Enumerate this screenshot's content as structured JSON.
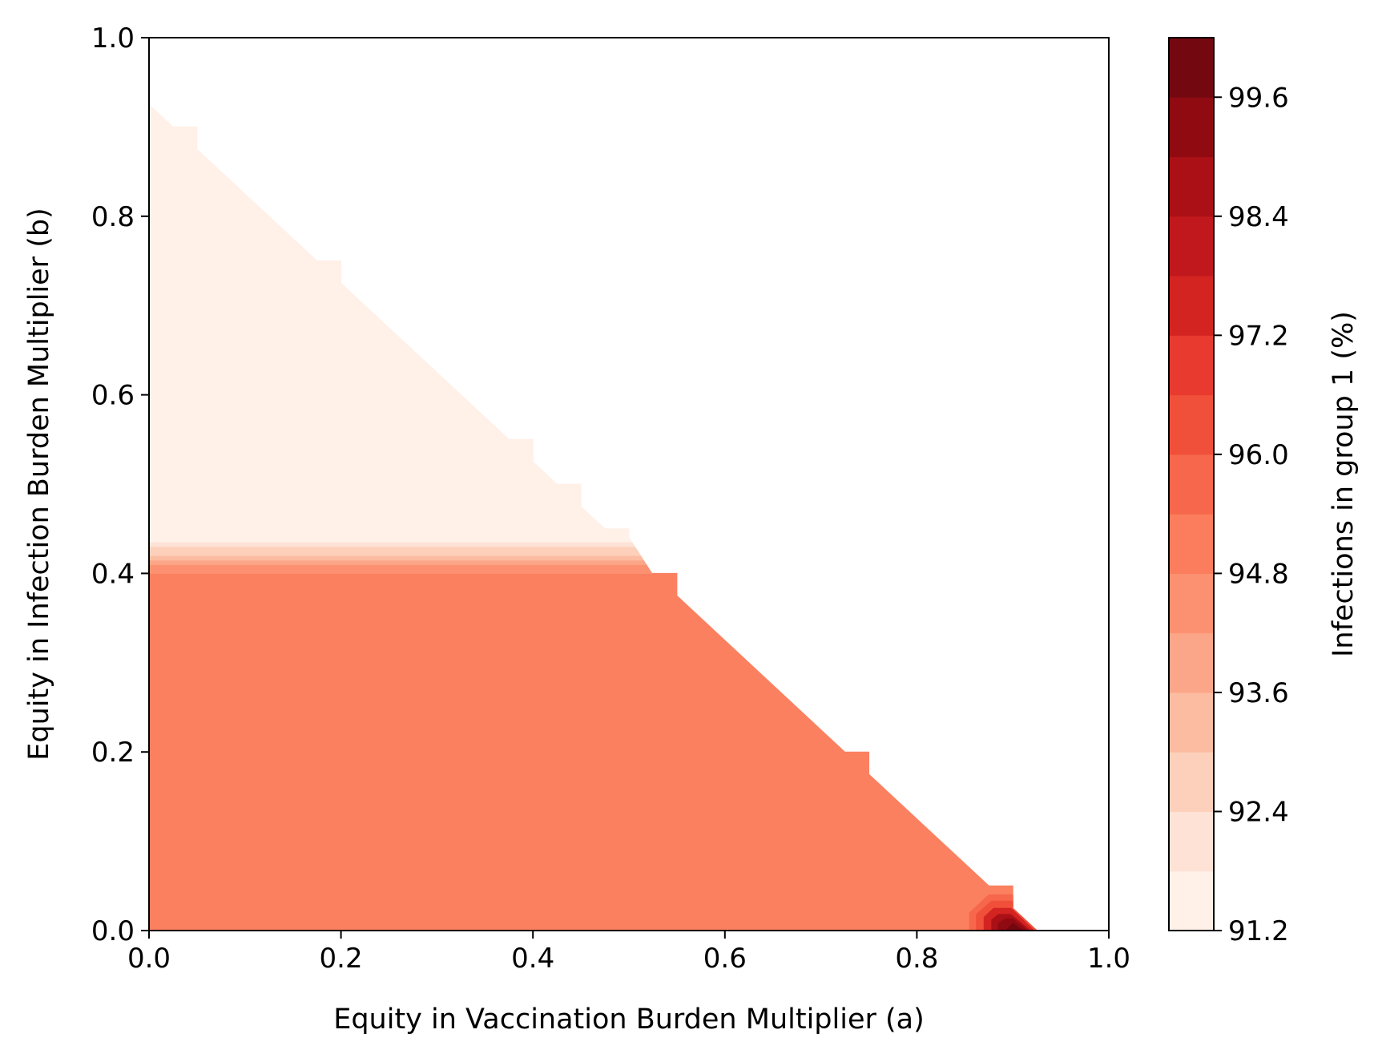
{
  "chart_data": {
    "type": "heatmap",
    "subtype": "filled-contour",
    "title": "",
    "xlabel": "Equity in Vaccination Burden Multiplier (a)",
    "ylabel": "Equity in Infection Burden Multiplier (b)",
    "xlim": [
      0.0,
      1.0
    ],
    "ylim": [
      0.0,
      1.0
    ],
    "xticks": [
      "0.0",
      "0.2",
      "0.4",
      "0.6",
      "0.8",
      "1.0"
    ],
    "yticks": [
      "0.0",
      "0.2",
      "0.4",
      "0.6",
      "0.8",
      "1.0"
    ],
    "grid": false,
    "colorbar": {
      "label": "Infections in group 1 (%)",
      "ticks": [
        "91.2",
        "92.4",
        "93.6",
        "94.8",
        "96.0",
        "97.2",
        "98.4",
        "99.6"
      ],
      "range": [
        91.2,
        100.2
      ],
      "levels": [
        91.2,
        91.8,
        92.4,
        93.0,
        93.6,
        94.2,
        94.8,
        95.4,
        96.0,
        96.6,
        97.2,
        97.8,
        98.4,
        99.0,
        99.6,
        100.2
      ],
      "colors": [
        "#fff0e8",
        "#fee2d5",
        "#fdd0bb",
        "#fcbca1",
        "#fca689",
        "#fc9171",
        "#fb7d5d",
        "#f6674b",
        "#f0503a",
        "#e83a2f",
        "#d42422",
        "#c0181c",
        "#ab1016",
        "#900a12",
        "#730811"
      ]
    },
    "regions": [
      {
        "name": "upper-left region (b above ~0.44)",
        "value_percent": 91.4,
        "color": "#fff0e8",
        "boundary": [
          [
            0.0,
            0.44
          ],
          [
            0.0,
            0.925
          ],
          [
            0.025,
            0.9
          ],
          [
            0.05,
            0.9
          ],
          [
            0.05,
            0.875
          ],
          [
            0.175,
            0.75
          ],
          [
            0.2,
            0.75
          ],
          [
            0.2,
            0.725
          ],
          [
            0.375,
            0.55
          ],
          [
            0.4,
            0.55
          ],
          [
            0.4,
            0.525
          ],
          [
            0.425,
            0.5
          ],
          [
            0.45,
            0.5
          ],
          [
            0.45,
            0.475
          ],
          [
            0.475,
            0.45
          ],
          [
            0.5,
            0.45
          ],
          [
            0.5,
            0.44
          ]
        ]
      },
      {
        "name": "lower-left region (b below ~0.40)",
        "value_percent": 95.0,
        "color": "#fb8060",
        "boundary": [
          [
            0.0,
            0.0
          ],
          [
            0.0,
            0.4
          ],
          [
            0.5,
            0.4
          ],
          [
            0.525,
            0.4
          ],
          [
            0.55,
            0.4
          ],
          [
            0.55,
            0.375
          ],
          [
            0.725,
            0.2
          ],
          [
            0.75,
            0.2
          ],
          [
            0.75,
            0.175
          ],
          [
            0.875,
            0.05
          ],
          [
            0.9,
            0.05
          ],
          [
            0.9,
            0.025
          ],
          [
            0.925,
            0.0
          ]
        ]
      },
      {
        "name": "transition band (b ~0.40 to ~0.44)",
        "value_range_percent": [
          91.4,
          95.0
        ]
      },
      {
        "name": "peak near a≈0.9, b≈0",
        "value_range_percent": [
          95.4,
          100.0
        ]
      },
      {
        "name": "upper-right region (a + b > ~0.92)",
        "value": "no data (blank)"
      }
    ]
  }
}
